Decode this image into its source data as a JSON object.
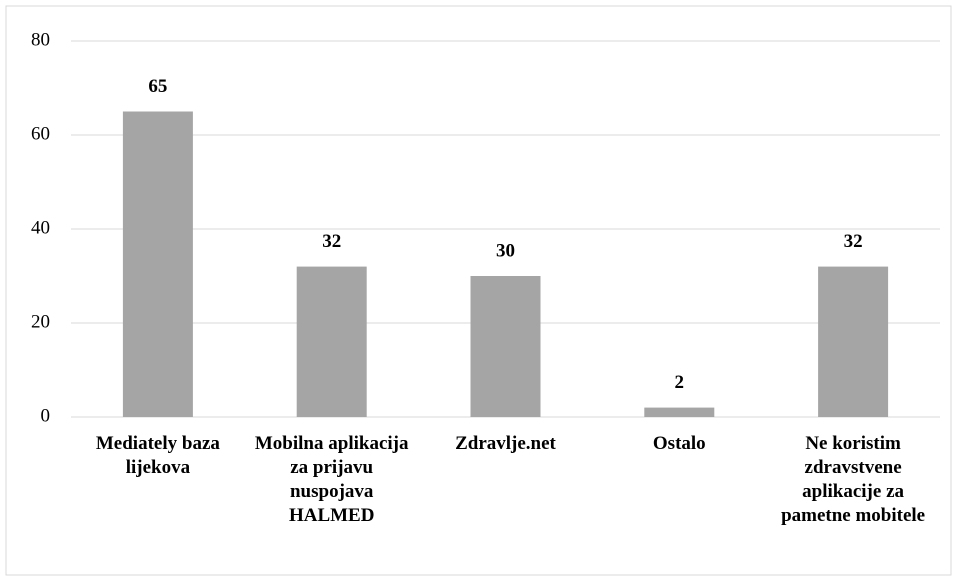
{
  "chart_data": {
    "type": "bar",
    "categories": [
      "Mediately baza lijekova",
      "Mobilna aplikacija za prijavu nuspojava HALMED",
      "Zdravlje.net",
      "Ostalo",
      "Ne koristim zdravstvene aplikacije za pametne mobitele"
    ],
    "values": [
      65,
      32,
      30,
      2,
      32
    ],
    "color": "#a5a5a5",
    "ylim": [
      0,
      80
    ],
    "yticks": [
      0,
      20,
      40,
      60,
      80
    ],
    "grid": true
  }
}
